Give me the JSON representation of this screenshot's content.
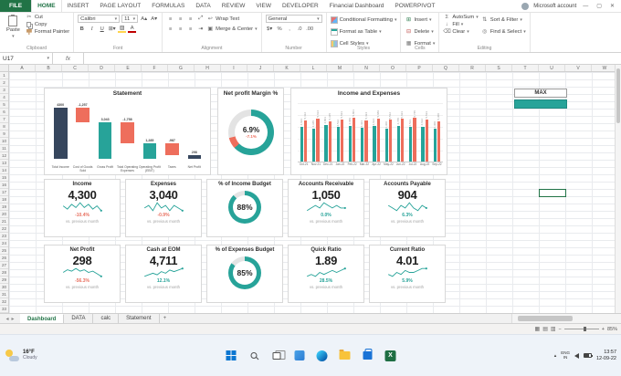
{
  "titlebar": {
    "tabs": [
      "FILE",
      "HOME",
      "INSERT",
      "PAGE LAYOUT",
      "FORMULAS",
      "DATA",
      "REVIEW",
      "VIEW",
      "DEVELOPER",
      "Financial Dashboard",
      "POWERPIVOT"
    ],
    "active_tab": "HOME",
    "account_label": "Microsoft account"
  },
  "ribbon": {
    "clipboard": {
      "label": "Clipboard",
      "paste": "Paste",
      "cut": "Cut",
      "copy": "Copy",
      "format_painter": "Format Painter"
    },
    "font": {
      "label": "Font",
      "font_name": "Calibri",
      "font_size": "11",
      "bold": "B",
      "italic": "I",
      "underline": "U"
    },
    "alignment": {
      "label": "Alignment",
      "wrap_text": "Wrap Text",
      "merge_center": "Merge & Center"
    },
    "number": {
      "label": "Number",
      "format": "General"
    },
    "styles": {
      "label": "Styles",
      "conditional": "Conditional Formatting",
      "format_table": "Format as Table",
      "cell_styles": "Cell Styles"
    },
    "cells": {
      "label": "Cells",
      "insert": "Insert",
      "delete": "Delete",
      "format": "Format"
    },
    "editing": {
      "label": "Editing",
      "autosum": "AutoSum",
      "fill": "Fill",
      "clear": "Clear",
      "sort_filter": "Sort & Filter",
      "find_select": "Find & Select"
    }
  },
  "formula_bar": {
    "name_box": "U17",
    "fx": "fx"
  },
  "grid": {
    "columns": [
      "A",
      "B",
      "C",
      "D",
      "E",
      "F",
      "G",
      "H",
      "I",
      "J",
      "K",
      "L",
      "M",
      "N",
      "O",
      "P",
      "Q",
      "R",
      "S",
      "T",
      "U",
      "V",
      "W"
    ],
    "row_count": 33,
    "selected_cell": "U17"
  },
  "dashboard": {
    "max_control": {
      "label": "MAX"
    },
    "kpis": [
      {
        "title": "Income",
        "value": "4,300",
        "delta": "-10.4%",
        "delta_color": "red",
        "caption": "vs. previous month",
        "spark": [
          6,
          4,
          7,
          5,
          8,
          5,
          7,
          4,
          6,
          3
        ]
      },
      {
        "title": "Expenses",
        "value": "3,040",
        "delta": "-0.9%",
        "delta_color": "red",
        "caption": "vs. previous month",
        "spark": [
          5,
          6,
          4,
          7,
          5,
          6,
          4,
          6,
          5,
          4
        ]
      },
      {
        "title": "% of Income Budget",
        "pct": 88,
        "pct_label": "88%"
      },
      {
        "title": "Accounts Receivable",
        "value": "1,050",
        "delta": "0.0%",
        "delta_color": "teal",
        "caption": "vs. previous month",
        "spark": [
          4,
          5,
          6,
          5,
          7,
          6,
          5,
          6,
          5,
          5
        ]
      },
      {
        "title": "Accounts Payable",
        "value": "904",
        "delta": "6.3%",
        "delta_color": "teal",
        "caption": "vs. previous month",
        "spark": [
          6,
          5,
          4,
          6,
          5,
          7,
          5,
          4,
          6,
          5
        ]
      },
      {
        "title": "Net Profit",
        "value": "298",
        "delta": "-56.3%",
        "delta_color": "red",
        "caption": "vs. previous month",
        "spark": [
          5,
          7,
          6,
          8,
          6,
          7,
          5,
          6,
          4,
          2
        ]
      },
      {
        "title": "Cash at EOM",
        "value": "4,711",
        "delta": "12.1%",
        "delta_color": "teal",
        "caption": "vs. previous month",
        "spark": [
          3,
          4,
          5,
          4,
          6,
          5,
          7,
          6,
          7,
          8
        ]
      },
      {
        "title": "% of Expenses Budget",
        "pct": 85,
        "pct_label": "85%"
      },
      {
        "title": "Quick Ratio",
        "value": "1.89",
        "delta": "28.5%",
        "delta_color": "teal",
        "caption": "vs. previous month",
        "spark": [
          4,
          5,
          4,
          6,
          5,
          6,
          7,
          6,
          7,
          8
        ]
      },
      {
        "title": "Current Ratio",
        "value": "4.01",
        "delta": "5.9%",
        "delta_color": "teal",
        "caption": "vs. previous month",
        "spark": [
          5,
          4,
          6,
          5,
          7,
          6,
          6,
          7,
          8,
          8
        ]
      }
    ]
  },
  "sheet_tabs": {
    "tabs": [
      "Dashboard",
      "DATA",
      "calc",
      "Statement"
    ],
    "active": "Dashboard",
    "add_label": "+"
  },
  "status_bar": {
    "zoom": "85%"
  },
  "taskbar": {
    "weather_temp": "16°F",
    "weather_condition": "Cloudy",
    "lang_line1": "ENG",
    "lang_line2": "IN",
    "time": "13:57",
    "date": "12-09-22"
  },
  "chart_data": [
    {
      "type": "waterfall",
      "title": "Statement",
      "categories": [
        "Total Income",
        "Cost of Goods Sold",
        "Gross Profit",
        "Total Operating Expenses",
        "Operating Profit (EBIT)",
        "Taxes",
        "Net Profit"
      ],
      "values": [
        4300,
        -1257,
        3043,
        -1758,
        1285,
        -987,
        298
      ],
      "bar_kinds": [
        "total",
        "delta",
        "subtotal",
        "delta",
        "subtotal",
        "delta",
        "total"
      ],
      "labels": [
        "4300",
        "-1,257",
        "3,043",
        "-1,758",
        "1,285",
        "-987",
        "298"
      ],
      "colors": {
        "total": "#36465d",
        "subtotal": "#27a399",
        "negative": "#ee6e5c",
        "positive": "#27a399"
      },
      "ylim": [
        0,
        4300
      ]
    },
    {
      "type": "donut",
      "title": "Net profit Margin %",
      "value": "6.9%",
      "delta": "-7.1%",
      "segments": [
        {
          "name": "margin",
          "pct": 63,
          "color": "#27a399"
        },
        {
          "name": "negative",
          "pct": 8,
          "color": "#ee6e5c"
        },
        {
          "name": "remainder",
          "pct": 29,
          "color": "#e3e3e3"
        }
      ]
    },
    {
      "type": "bar",
      "title": "Income and Expenses",
      "categories": [
        "Oct-21",
        "Nov-21",
        "Dec-21",
        "Jan-22",
        "Feb-22",
        "Mar-22",
        "Apr-22",
        "May-22",
        "Jun-22",
        "Jul-22",
        "Aug-22",
        "Sep-22"
      ],
      "series": [
        {
          "name": "Income",
          "color": "#27a399",
          "values": [
            4623,
            4345,
            4801,
            4512,
            4689,
            4423,
            4634,
            4300,
            4745,
            4533,
            4612,
            4300
          ]
        },
        {
          "name": "Expenses",
          "color": "#ee6e5c",
          "values": [
            5412,
            5634,
            5345,
            5523,
            5801,
            5434,
            5689,
            5512,
            5623,
            5745,
            5533,
            5300
          ]
        }
      ],
      "ylim": [
        0,
        6000
      ],
      "legend": "none"
    },
    {
      "type": "donut",
      "title": "% of Income Budget",
      "value": "88%",
      "pct": 88
    },
    {
      "type": "donut",
      "title": "% of Expenses Budget",
      "value": "85%",
      "pct": 85
    }
  ]
}
